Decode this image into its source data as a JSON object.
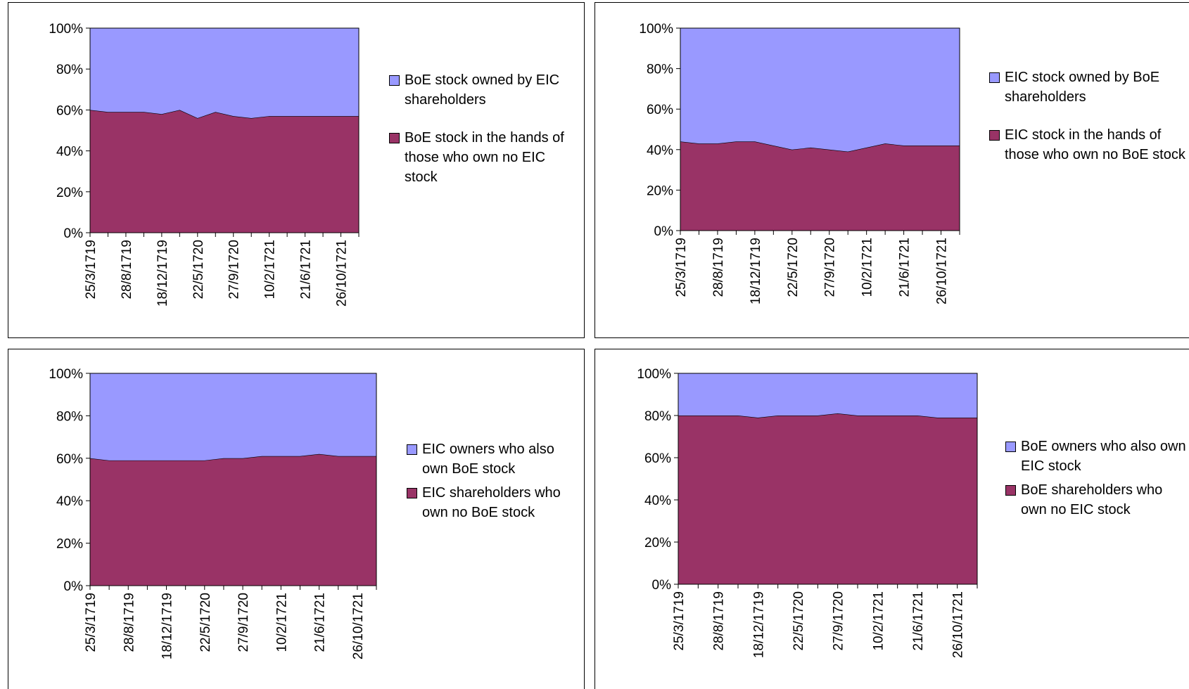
{
  "chart_data": [
    {
      "type": "area",
      "stacked": true,
      "categories": [
        "25/3/1719",
        null,
        "28/8/1719",
        null,
        "18/12/1719",
        null,
        "22/5/1720",
        null,
        "27/9/1720",
        null,
        "10/2/1721",
        null,
        "21/6/1721",
        null,
        "26/10/1721",
        null
      ],
      "series": [
        {
          "name": "BoE stock owned by EIC shareholders",
          "color": "#9999ff",
          "values": [
            40,
            41,
            41,
            41,
            42,
            40,
            44,
            41,
            43,
            44,
            43,
            43,
            43,
            43,
            43,
            43
          ]
        },
        {
          "name": "BoE stock in the hands of those who own no EIC stock",
          "color": "#993366",
          "values": [
            60,
            59,
            59,
            59,
            58,
            60,
            56,
            59,
            57,
            56,
            57,
            57,
            57,
            57,
            57,
            57
          ]
        }
      ],
      "ylim": [
        0,
        100
      ],
      "yticks": [
        {
          "value": 0,
          "label": "0%"
        },
        {
          "value": 20,
          "label": "20%"
        },
        {
          "value": 40,
          "label": "40%"
        },
        {
          "value": 60,
          "label": "60%"
        },
        {
          "value": 80,
          "label": "80%"
        },
        {
          "value": 100,
          "label": "100%"
        }
      ]
    },
    {
      "type": "area",
      "stacked": true,
      "categories": [
        "25/3/1719",
        null,
        "28/8/1719",
        null,
        "18/12/1719",
        null,
        "22/5/1720",
        null,
        "27/9/1720",
        null,
        "10/2/1721",
        null,
        "21/6/1721",
        null,
        "26/10/1721",
        null
      ],
      "series": [
        {
          "name": "EIC stock owned by BoE shareholders",
          "color": "#9999ff",
          "values": [
            56,
            57,
            57,
            56,
            56,
            58,
            60,
            59,
            60,
            61,
            59,
            57,
            58,
            58,
            58,
            58
          ]
        },
        {
          "name": "EIC stock in the hands of those who own no BoE stock",
          "color": "#993366",
          "values": [
            44,
            43,
            43,
            44,
            44,
            42,
            40,
            41,
            40,
            39,
            41,
            43,
            42,
            42,
            42,
            42
          ]
        }
      ],
      "ylim": [
        0,
        100
      ],
      "yticks": [
        {
          "value": 0,
          "label": "0%"
        },
        {
          "value": 20,
          "label": "20%"
        },
        {
          "value": 40,
          "label": "40%"
        },
        {
          "value": 60,
          "label": "60%"
        },
        {
          "value": 80,
          "label": "80%"
        },
        {
          "value": 100,
          "label": "100%"
        }
      ]
    },
    {
      "type": "area",
      "stacked": true,
      "categories": [
        "25/3/1719",
        null,
        "28/8/1719",
        null,
        "18/12/1719",
        null,
        "22/5/1720",
        null,
        "27/9/1720",
        null,
        "10/2/1721",
        null,
        "21/6/1721",
        null,
        "26/10/1721",
        null
      ],
      "series": [
        {
          "name": "EIC owners who also own BoE stock",
          "color": "#9999ff",
          "values": [
            40,
            41,
            41,
            41,
            41,
            41,
            41,
            40,
            40,
            39,
            39,
            39,
            38,
            39,
            39,
            39
          ]
        },
        {
          "name": "EIC shareholders who own no BoE stock",
          "color": "#993366",
          "values": [
            60,
            59,
            59,
            59,
            59,
            59,
            59,
            60,
            60,
            61,
            61,
            61,
            62,
            61,
            61,
            61
          ]
        }
      ],
      "ylim": [
        0,
        100
      ],
      "yticks": [
        {
          "value": 0,
          "label": "0%"
        },
        {
          "value": 20,
          "label": "20%"
        },
        {
          "value": 40,
          "label": "40%"
        },
        {
          "value": 60,
          "label": "60%"
        },
        {
          "value": 80,
          "label": "80%"
        },
        {
          "value": 100,
          "label": "100%"
        }
      ]
    },
    {
      "type": "area",
      "stacked": true,
      "categories": [
        "25/3/1719",
        null,
        "28/8/1719",
        null,
        "18/12/1719",
        null,
        "22/5/1720",
        null,
        "27/9/1720",
        null,
        "10/2/1721",
        null,
        "21/6/1721",
        null,
        "26/10/1721",
        null
      ],
      "series": [
        {
          "name": "BoE owners who also own EIC stock",
          "color": "#9999ff",
          "values": [
            20,
            20,
            20,
            20,
            21,
            20,
            20,
            20,
            19,
            20,
            20,
            20,
            20,
            21,
            21,
            21
          ]
        },
        {
          "name": "BoE shareholders who own no EIC stock",
          "color": "#993366",
          "values": [
            80,
            80,
            80,
            80,
            79,
            80,
            80,
            80,
            81,
            80,
            80,
            80,
            80,
            79,
            79,
            79
          ]
        }
      ],
      "ylim": [
        0,
        100
      ],
      "yticks": [
        {
          "value": 0,
          "label": "0%"
        },
        {
          "value": 20,
          "label": "20%"
        },
        {
          "value": 40,
          "label": "40%"
        },
        {
          "value": 60,
          "label": "60%"
        },
        {
          "value": 80,
          "label": "80%"
        },
        {
          "value": 100,
          "label": "100%"
        }
      ]
    }
  ]
}
